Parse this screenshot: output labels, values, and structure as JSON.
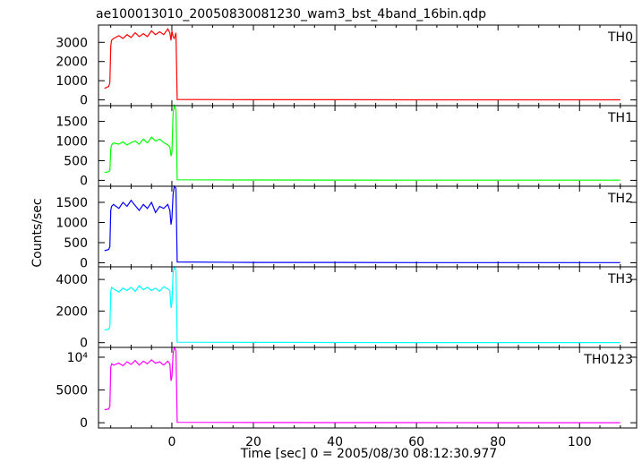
{
  "chart_data": {
    "type": "line",
    "title": "ae100013010_20050830081230_wam3_bst_4band_16bin.qdp",
    "xlabel": "Time [sec] 0 = 2005/08/30 08:12:30.977",
    "ylabel": "Counts/sec",
    "xlim": [
      -18,
      114
    ],
    "xticks": [
      "0",
      "20",
      "40",
      "60",
      "80",
      "100"
    ],
    "grid": false,
    "panels": [
      {
        "name": "TH0",
        "color": "#ff0000",
        "ylim": [
          -300,
          3900
        ],
        "yticks": [
          {
            "v": 0,
            "t": "0"
          },
          {
            "v": 1000,
            "t": "1000"
          },
          {
            "v": 2000,
            "t": "2000"
          },
          {
            "v": 3000,
            "t": "3000"
          }
        ],
        "x": [
          -16.5,
          -15.5,
          -15.2,
          -15.0,
          -14.8,
          -14.3,
          -13.0,
          -12.0,
          -11.0,
          -10.0,
          -9.0,
          -8.0,
          -7.0,
          -6.0,
          -5.0,
          -4.0,
          -3.0,
          -2.0,
          -1.0,
          -0.5,
          -0.2,
          0.0,
          0.3,
          0.6,
          1.0,
          1.3,
          20,
          40,
          60,
          80,
          100,
          110
        ],
        "y": [
          600,
          700,
          900,
          2800,
          3100,
          3200,
          3350,
          3200,
          3400,
          3250,
          3500,
          3300,
          3450,
          3300,
          3600,
          3400,
          3550,
          3400,
          3700,
          3500,
          3100,
          3600,
          3300,
          3200,
          3500,
          20,
          10,
          8,
          5,
          5,
          5,
          5
        ]
      },
      {
        "name": "TH1",
        "color": "#00ff00",
        "ylim": [
          -150,
          1900
        ],
        "yticks": [
          {
            "v": 0,
            "t": "0"
          },
          {
            "v": 500,
            "t": "500"
          },
          {
            "v": 1000,
            "t": "1000"
          },
          {
            "v": 1500,
            "t": "1500"
          }
        ],
        "x": [
          -16.5,
          -15.5,
          -15.2,
          -15.0,
          -14.8,
          -14.3,
          -13.0,
          -12.0,
          -11.0,
          -10.0,
          -9.0,
          -8.0,
          -7.0,
          -6.0,
          -5.0,
          -4.0,
          -3.0,
          -2.0,
          -1.0,
          -0.5,
          -0.2,
          0.0,
          0.3,
          0.6,
          1.0,
          1.3,
          20,
          40,
          60,
          80,
          100,
          110
        ],
        "y": [
          200,
          220,
          250,
          800,
          900,
          950,
          920,
          980,
          900,
          960,
          1000,
          920,
          1050,
          950,
          1100,
          1000,
          1050,
          960,
          900,
          850,
          620,
          700,
          1700,
          1900,
          1800,
          15,
          10,
          8,
          5,
          5,
          5,
          5
        ]
      },
      {
        "name": "TH2",
        "color": "#0000ff",
        "ylim": [
          -100,
          1900
        ],
        "yticks": [
          {
            "v": 0,
            "t": "0"
          },
          {
            "v": 500,
            "t": "500"
          },
          {
            "v": 1000,
            "t": "1000"
          },
          {
            "v": 1500,
            "t": "1500"
          }
        ],
        "x": [
          -16.5,
          -15.5,
          -15.2,
          -15.0,
          -14.8,
          -14.3,
          -13.0,
          -12.0,
          -11.0,
          -10.0,
          -9.0,
          -8.0,
          -7.0,
          -6.0,
          -5.0,
          -4.0,
          -3.0,
          -2.0,
          -1.0,
          -0.5,
          -0.2,
          0.0,
          0.3,
          0.6,
          1.0,
          1.3,
          20,
          40,
          60,
          80,
          100,
          110
        ],
        "y": [
          300,
          330,
          400,
          1300,
          1400,
          1450,
          1350,
          1500,
          1400,
          1550,
          1420,
          1300,
          1450,
          1350,
          1500,
          1250,
          1400,
          1350,
          1450,
          1300,
          950,
          1100,
          1700,
          1900,
          1850,
          20,
          10,
          8,
          5,
          5,
          5,
          5
        ]
      },
      {
        "name": "TH3",
        "color": "#00ffff",
        "ylim": [
          -300,
          4800
        ],
        "yticks": [
          {
            "v": 0,
            "t": "0"
          },
          {
            "v": 2000,
            "t": "2000"
          },
          {
            "v": 4000,
            "t": "4000"
          }
        ],
        "x": [
          -16.5,
          -15.5,
          -15.2,
          -15.0,
          -14.8,
          -14.3,
          -13.0,
          -12.0,
          -11.0,
          -10.0,
          -9.0,
          -8.0,
          -7.0,
          -6.0,
          -5.0,
          -4.0,
          -3.0,
          -2.0,
          -1.0,
          -0.5,
          -0.2,
          0.0,
          0.3,
          0.6,
          1.0,
          1.3,
          20,
          40,
          60,
          80,
          100,
          110
        ],
        "y": [
          800,
          850,
          1000,
          3200,
          3500,
          3400,
          3200,
          3450,
          3300,
          3500,
          3250,
          3600,
          3350,
          3500,
          3300,
          3450,
          3250,
          3550,
          3400,
          3300,
          2200,
          2500,
          4400,
          4800,
          4600,
          30,
          15,
          10,
          8,
          6,
          5,
          5
        ]
      },
      {
        "name": "TH0123",
        "color": "#ff00ff",
        "ylim": [
          -800,
          11500
        ],
        "yticks": [
          {
            "v": 0,
            "t": "0"
          },
          {
            "v": 5000,
            "t": "5000"
          },
          {
            "v": 10000,
            "t": "10⁴"
          }
        ],
        "x": [
          -16.5,
          -15.5,
          -15.2,
          -15.0,
          -14.8,
          -14.3,
          -13.0,
          -12.0,
          -11.0,
          -10.0,
          -9.0,
          -8.0,
          -7.0,
          -6.0,
          -5.0,
          -4.0,
          -3.0,
          -2.0,
          -1.0,
          -0.5,
          -0.2,
          0.0,
          0.3,
          0.6,
          1.0,
          1.3,
          20,
          40,
          60,
          80,
          100,
          110
        ],
        "y": [
          2000,
          2100,
          2500,
          8500,
          9000,
          8800,
          9100,
          8700,
          9300,
          8900,
          9500,
          8800,
          9400,
          9000,
          9600,
          9100,
          9300,
          8800,
          9400,
          9000,
          6400,
          7000,
          10500,
          11500,
          11000,
          60,
          30,
          20,
          15,
          10,
          10,
          10
        ]
      }
    ]
  }
}
